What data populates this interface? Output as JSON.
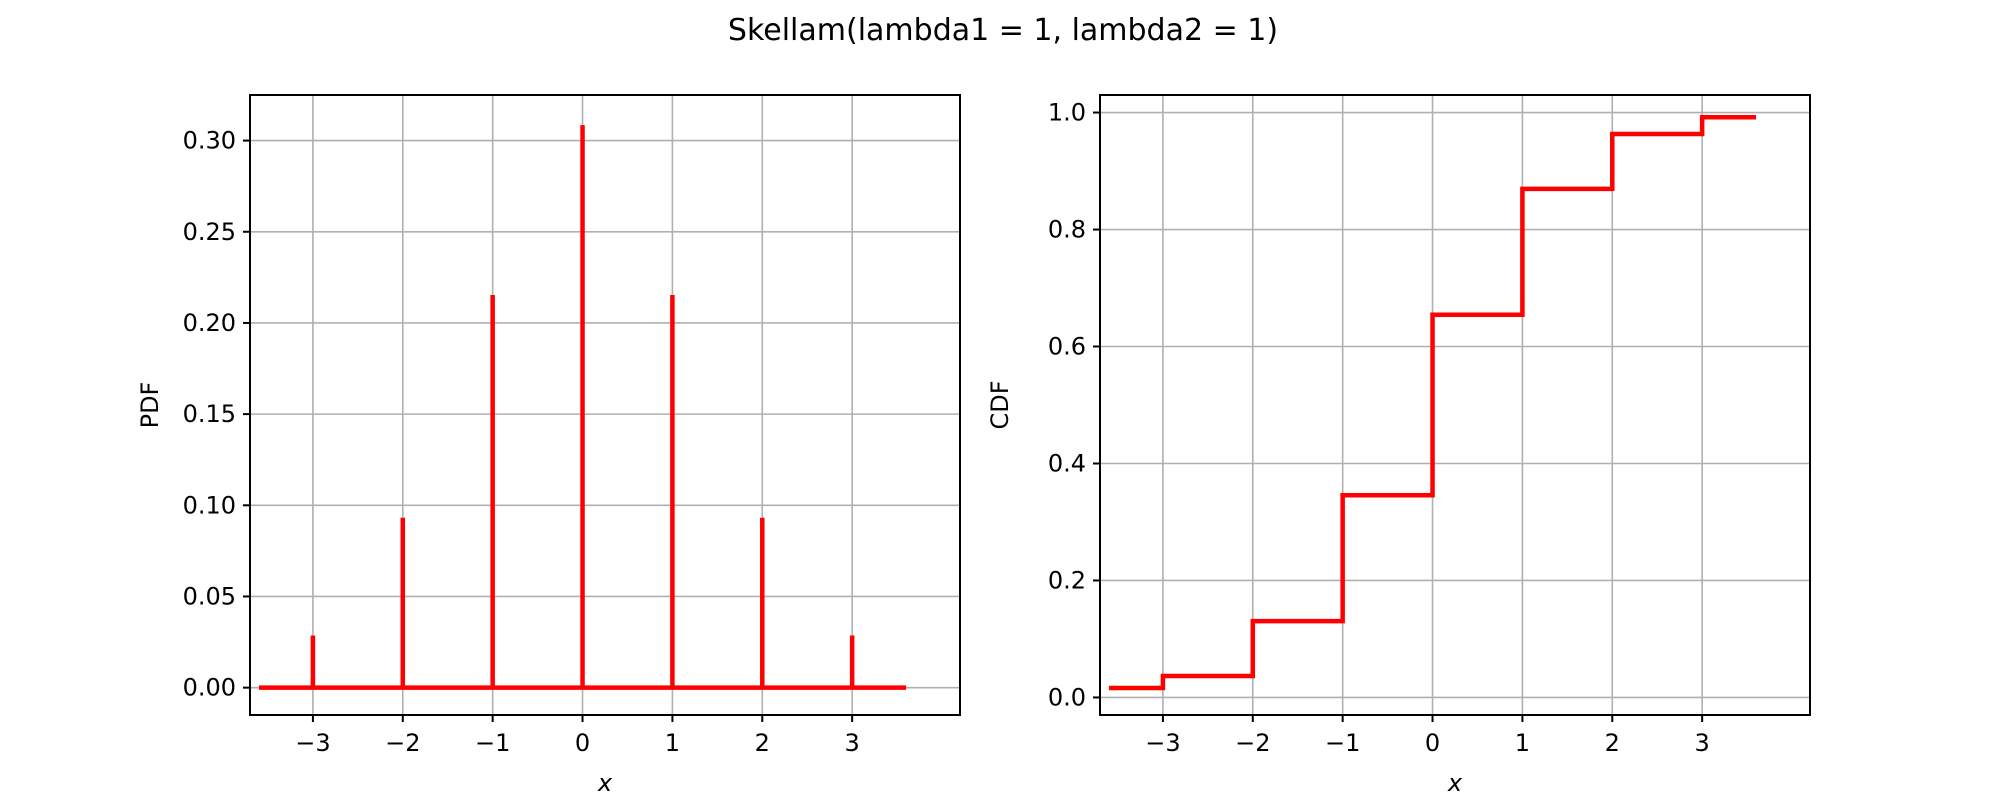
{
  "figure": {
    "title": "Skellam(lambda1 = 1, lambda2 = 1)"
  },
  "chart_data": [
    {
      "type": "bar",
      "subtype": "stem",
      "title": "",
      "xlabel": "x",
      "ylabel": "PDF",
      "xlim": [
        -3.7,
        4.2
      ],
      "ylim": [
        -0.015,
        0.325
      ],
      "x_ticks": [
        -3,
        -2,
        -1,
        0,
        1,
        2,
        3
      ],
      "x_tick_labels": [
        "−3",
        "−2",
        "−1",
        "0",
        "1",
        "2",
        "3"
      ],
      "y_ticks": [
        0.0,
        0.05,
        0.1,
        0.15,
        0.2,
        0.25,
        0.3
      ],
      "y_tick_labels": [
        "0.00",
        "0.05",
        "0.10",
        "0.15",
        "0.20",
        "0.25",
        "0.30"
      ],
      "x": [
        -3,
        -2,
        -1,
        0,
        1,
        2,
        3
      ],
      "values": [
        0.0286,
        0.0932,
        0.2153,
        0.3085,
        0.2153,
        0.0932,
        0.0286
      ],
      "baseline_range": [
        -3.6,
        3.6
      ],
      "grid": true,
      "color": "#ff0000"
    },
    {
      "type": "line",
      "subtype": "step",
      "title": "",
      "xlabel": "x",
      "ylabel": "CDF",
      "xlim": [
        -3.7,
        4.2
      ],
      "ylim": [
        -0.03,
        1.03
      ],
      "x_ticks": [
        -3,
        -2,
        -1,
        0,
        1,
        2,
        3
      ],
      "x_tick_labels": [
        "−3",
        "−2",
        "−1",
        "0",
        "1",
        "2",
        "3"
      ],
      "y_ticks": [
        0.0,
        0.2,
        0.4,
        0.6,
        0.8,
        1.0
      ],
      "y_tick_labels": [
        "0.0",
        "0.2",
        "0.4",
        "0.6",
        "0.8",
        "1.0"
      ],
      "x": [
        -3.6,
        -3,
        -2,
        -1,
        0,
        1,
        2,
        3,
        3.6
      ],
      "values": [
        0.0161,
        0.0367,
        0.1304,
        0.3457,
        0.6543,
        0.8696,
        0.9633,
        0.9919,
        0.9919
      ],
      "grid": true,
      "color": "#ff0000"
    }
  ]
}
